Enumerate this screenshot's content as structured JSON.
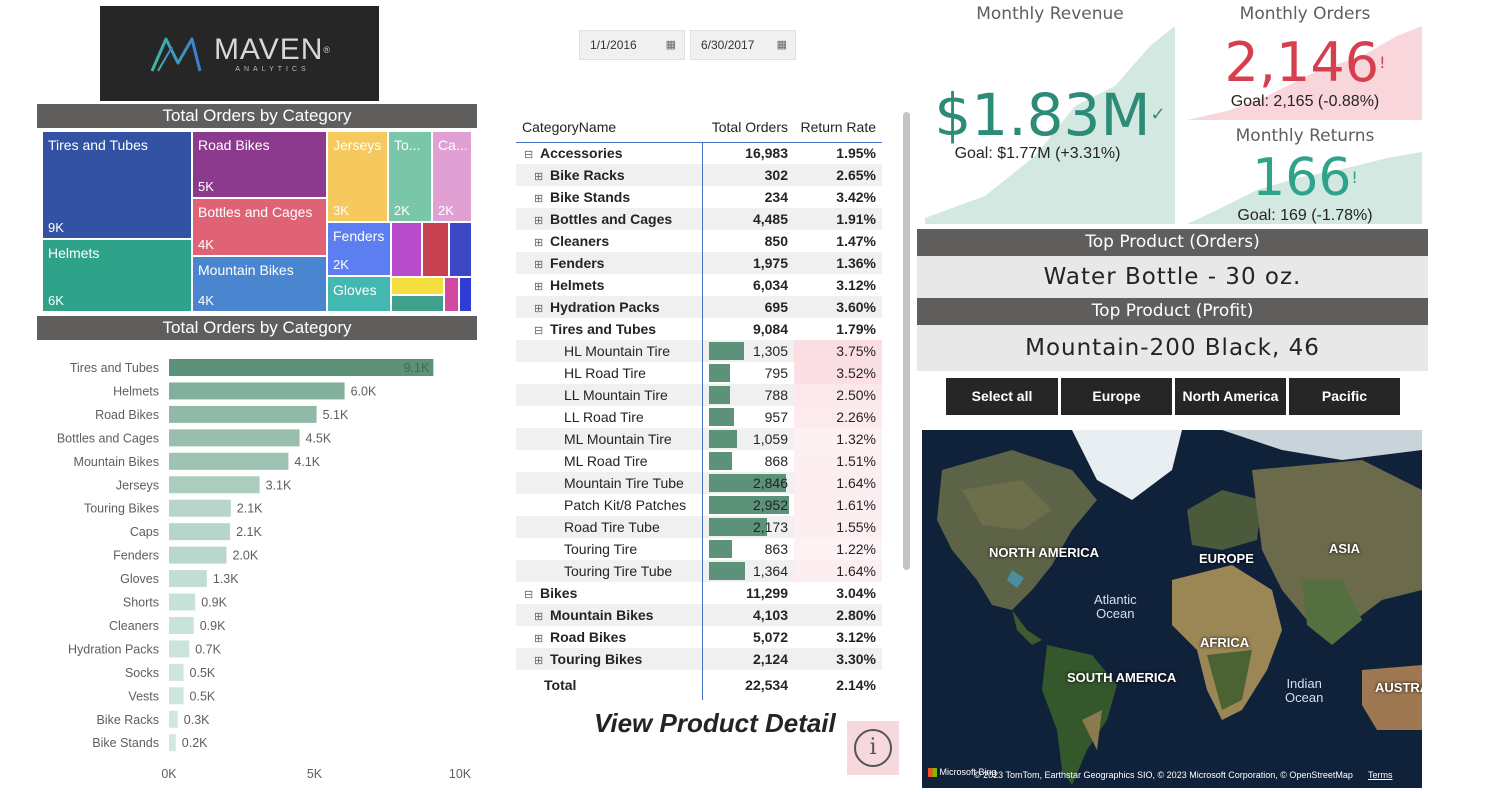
{
  "logo": {
    "word": "MAVEN",
    "sub": "ANALYTICS",
    "mark": "®"
  },
  "treemap": {
    "title": "Total Orders by Category",
    "tiles": [
      {
        "label": "Tires and Tubes",
        "value": "9K",
        "color": "#3352a3"
      },
      {
        "label": "Helmets",
        "value": "6K",
        "color": "#2fa38a"
      },
      {
        "label": "Road Bikes",
        "value": "5K",
        "color": "#8b3a8e"
      },
      {
        "label": "Bottles and Cages",
        "value": "4K",
        "color": "#e06375"
      },
      {
        "label": "Mountain Bikes",
        "value": "4K",
        "color": "#4a86d0"
      },
      {
        "label": "Jerseys",
        "value": "3K",
        "color": "#f5c95e"
      },
      {
        "label": "To...",
        "value": "2K",
        "color": "#7ac6a8"
      },
      {
        "label": "Ca...",
        "value": "2K",
        "color": "#e0a0d3"
      },
      {
        "label": "Fenders",
        "value": "2K",
        "color": "#5c7ef0"
      },
      {
        "label": "Gloves",
        "value": "",
        "color": "#42b8b0"
      }
    ],
    "small_colors": [
      "#b74bcc",
      "#c7424e",
      "#3b4ac4",
      "#f6dd3e",
      "#3fa08b",
      "#d14aa0",
      "#2f3dd4"
    ]
  },
  "chart_data": {
    "type": "bar",
    "orientation": "horizontal",
    "title": "Total Orders by Category",
    "categories": [
      "Tires and Tubes",
      "Helmets",
      "Road Bikes",
      "Bottles and Cages",
      "Mountain Bikes",
      "Jerseys",
      "Touring Bikes",
      "Caps",
      "Fenders",
      "Gloves",
      "Shorts",
      "Cleaners",
      "Hydration Packs",
      "Socks",
      "Vests",
      "Bike Racks",
      "Bike Stands"
    ],
    "values": [
      9084,
      6034,
      5072,
      4485,
      4103,
      3113,
      2124,
      2100,
      1975,
      1300,
      900,
      850,
      695,
      500,
      500,
      302,
      234
    ],
    "data_labels": [
      "9.1K",
      "6.0K",
      "5.1K",
      "4.5K",
      "4.1K",
      "3.1K",
      "2.1K",
      "2.1K",
      "2.0K",
      "1.3K",
      "0.9K",
      "0.9K",
      "0.7K",
      "0.5K",
      "0.5K",
      "0.3K",
      "0.2K"
    ],
    "xlim": [
      0,
      10000
    ],
    "x_ticks": [
      "0K",
      "5K",
      "10K"
    ],
    "colors": {
      "max": "#5b9279",
      "min": "#d3ebe2"
    }
  },
  "dates": {
    "start": "1/1/2016",
    "end": "6/30/2017",
    "cal_icon": "▦"
  },
  "matrix": {
    "headers": [
      "CategoryName",
      "Total Orders",
      "Return Rate"
    ],
    "rows": [
      {
        "level": 0,
        "sym": "⊟",
        "name": "Accessories",
        "orders": "16,983",
        "rate": "1.95%"
      },
      {
        "level": 1,
        "sym": "⊞",
        "name": "Bike Racks",
        "orders": "302",
        "rate": "2.65%"
      },
      {
        "level": 1,
        "sym": "⊞",
        "name": "Bike Stands",
        "orders": "234",
        "rate": "3.42%"
      },
      {
        "level": 1,
        "sym": "⊞",
        "name": "Bottles and Cages",
        "orders": "4,485",
        "rate": "1.91%"
      },
      {
        "level": 1,
        "sym": "⊞",
        "name": "Cleaners",
        "orders": "850",
        "rate": "1.47%"
      },
      {
        "level": 1,
        "sym": "⊞",
        "name": "Fenders",
        "orders": "1,975",
        "rate": "1.36%"
      },
      {
        "level": 1,
        "sym": "⊞",
        "name": "Helmets",
        "orders": "6,034",
        "rate": "3.12%"
      },
      {
        "level": 1,
        "sym": "⊞",
        "name": "Hydration Packs",
        "orders": "695",
        "rate": "3.60%"
      },
      {
        "level": 1,
        "sym": "⊟",
        "name": "Tires and Tubes",
        "orders": "9,084",
        "rate": "1.79%"
      },
      {
        "level": 2,
        "sym": "",
        "name": "HL Mountain Tire",
        "orders": "1,305",
        "rate": "3.75%",
        "bar": 1305,
        "tint": 0.9
      },
      {
        "level": 2,
        "sym": "",
        "name": "HL Road Tire",
        "orders": "795",
        "rate": "3.52%",
        "bar": 795,
        "tint": 0.8
      },
      {
        "level": 2,
        "sym": "",
        "name": "LL Mountain Tire",
        "orders": "788",
        "rate": "2.50%",
        "bar": 788,
        "tint": 0.5
      },
      {
        "level": 2,
        "sym": "",
        "name": "LL Road Tire",
        "orders": "957",
        "rate": "2.26%",
        "bar": 957,
        "tint": 0.4
      },
      {
        "level": 2,
        "sym": "",
        "name": "ML Mountain Tire",
        "orders": "1,059",
        "rate": "1.32%",
        "bar": 1059,
        "tint": 0.15
      },
      {
        "level": 2,
        "sym": "",
        "name": "ML Road Tire",
        "orders": "868",
        "rate": "1.51%",
        "bar": 868,
        "tint": 0.2
      },
      {
        "level": 2,
        "sym": "",
        "name": "Mountain Tire Tube",
        "orders": "2,846",
        "rate": "1.64%",
        "bar": 2846,
        "tint": 0.25
      },
      {
        "level": 2,
        "sym": "",
        "name": "Patch Kit/8 Patches",
        "orders": "2,952",
        "rate": "1.61%",
        "bar": 2952,
        "tint": 0.25
      },
      {
        "level": 2,
        "sym": "",
        "name": "Road Tire Tube",
        "orders": "2,173",
        "rate": "1.55%",
        "bar": 2173,
        "tint": 0.2
      },
      {
        "level": 2,
        "sym": "",
        "name": "Touring Tire",
        "orders": "863",
        "rate": "1.22%",
        "bar": 863,
        "tint": 0.1
      },
      {
        "level": 2,
        "sym": "",
        "name": "Touring Tire Tube",
        "orders": "1,364",
        "rate": "1.64%",
        "bar": 1364,
        "tint": 0.25
      },
      {
        "level": 0,
        "sym": "⊟",
        "name": "Bikes",
        "orders": "11,299",
        "rate": "3.04%"
      },
      {
        "level": 1,
        "sym": "⊞",
        "name": "Mountain Bikes",
        "orders": "4,103",
        "rate": "2.80%"
      },
      {
        "level": 1,
        "sym": "⊞",
        "name": "Road Bikes",
        "orders": "5,072",
        "rate": "3.12%"
      },
      {
        "level": 1,
        "sym": "⊞",
        "name": "Touring Bikes",
        "orders": "2,124",
        "rate": "3.30%"
      }
    ],
    "total": {
      "name": "Total",
      "orders": "22,534",
      "rate": "2.14%"
    },
    "bar_max": 2952,
    "bar_color": "#5b9279",
    "tint_color": "#f4b8c1"
  },
  "view_detail": "View Product Detail",
  "info_icon": "i",
  "kpis": {
    "revenue": {
      "title": "Monthly Revenue",
      "value": "$1.83M",
      "status": "✓",
      "goal": "Goal: $1.77M (+3.31%)",
      "color": "#2c8c77",
      "area": "#d3e8e1"
    },
    "orders": {
      "title": "Monthly Orders",
      "value": "2,146",
      "status": "!",
      "goal": "Goal: 2,165 (-0.88%)",
      "color": "#d6404e",
      "area": "#f8d6db"
    },
    "returns": {
      "title": "Monthly Returns",
      "value": "166",
      "status": "!",
      "goal": "Goal: 169 (-1.78%)",
      "color": "#2fa38a",
      "area": "#d3e8e1"
    }
  },
  "top_product": {
    "orders_title": "Top Product (Orders)",
    "orders_value": "Water Bottle - 30 oz.",
    "profit_title": "Top Product (Profit)",
    "profit_value": "Mountain-200 Black, 46"
  },
  "regions": [
    "Select all",
    "Europe",
    "North America",
    "Pacific"
  ],
  "map": {
    "continents": [
      "NORTH AMERICA",
      "EUROPE",
      "ASIA",
      "AFRICA",
      "SOUTH AMERICA",
      "AUSTRA"
    ],
    "oceans": [
      [
        "Atlantic",
        "Ocean"
      ],
      [
        "Indian",
        "Ocean"
      ]
    ],
    "brand": "Microsoft Bing",
    "attribution": "© 2023 TomTom, Earthstar Geographics SIO, © 2023 Microsoft Corporation, © OpenStreetMap",
    "terms": "Terms"
  }
}
